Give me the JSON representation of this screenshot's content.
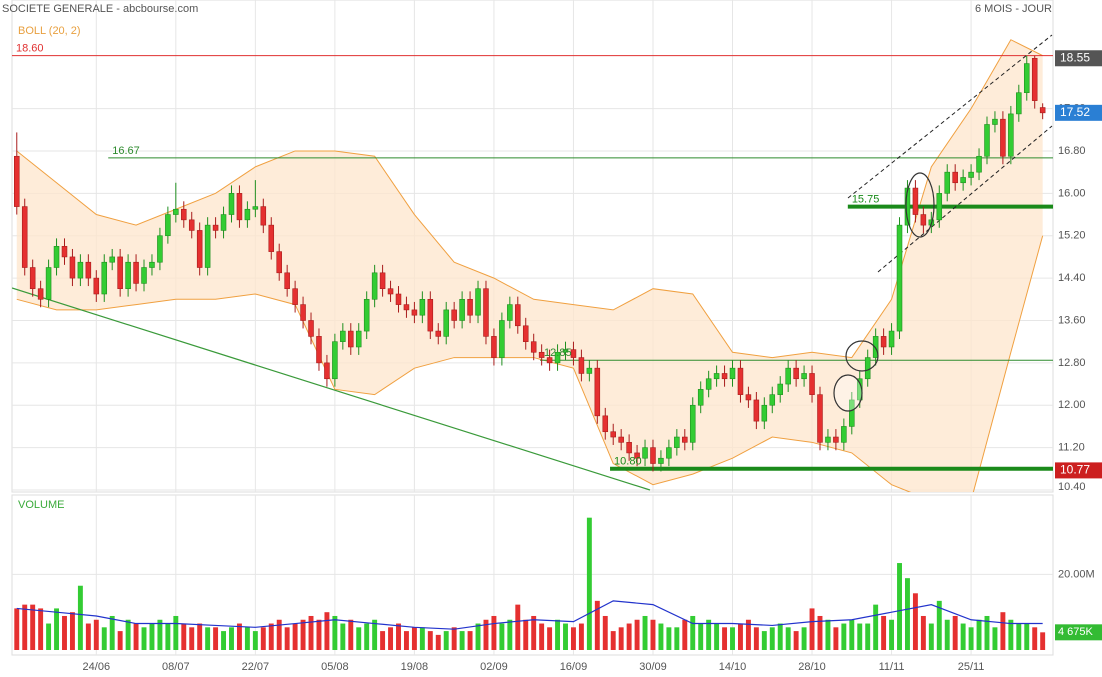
{
  "chart_data": {
    "type": "candlestick",
    "title": "SOCIETE GENERALE - abcbourse.com",
    "subtitle": "6 MOIS - JOUR",
    "xlim": [
      -0.6,
      130.3
    ],
    "ylim": [
      10.4,
      19.65
    ],
    "yticks": [
      {
        "value": 17.6,
        "label": "17.60"
      },
      {
        "value": 16.8,
        "label": "16.80"
      },
      {
        "value": 16,
        "label": "16.00"
      },
      {
        "value": 15.2,
        "label": "15.20"
      },
      {
        "value": 14.4,
        "label": "14.40"
      },
      {
        "value": 13.6,
        "label": "13.60"
      },
      {
        "value": 12.8,
        "label": "12.80"
      },
      {
        "value": 12,
        "label": "12.00"
      },
      {
        "value": 11.2,
        "label": "11.20"
      },
      {
        "value": 10.4,
        "label": "10.40"
      }
    ],
    "xticks": [
      {
        "value": 10,
        "label": "24/06"
      },
      {
        "value": 20,
        "label": "08/07"
      },
      {
        "value": 30,
        "label": "22/07"
      },
      {
        "value": 40,
        "label": "05/08"
      },
      {
        "value": 50,
        "label": "19/08"
      },
      {
        "value": 60,
        "label": "02/09"
      },
      {
        "value": 70,
        "label": "16/09"
      },
      {
        "value": 80,
        "label": "30/09"
      },
      {
        "value": 90,
        "label": "14/10"
      },
      {
        "value": 100,
        "label": "28/10"
      },
      {
        "value": 110,
        "label": "11/11"
      },
      {
        "value": 120,
        "label": "25/11"
      }
    ],
    "grid": true,
    "up_color": "#33cc33",
    "down_color": "#e53030",
    "candles": [
      [
        16.7,
        17.15,
        15.6,
        15.75
      ],
      [
        15.75,
        15.9,
        14.45,
        14.6
      ],
      [
        14.6,
        14.75,
        14.05,
        14.2
      ],
      [
        14.2,
        14.35,
        13.85,
        14.0
      ],
      [
        14.0,
        14.75,
        13.85,
        14.6
      ],
      [
        14.6,
        15.15,
        14.45,
        15.0
      ],
      [
        15.0,
        15.15,
        14.65,
        14.8
      ],
      [
        14.8,
        14.95,
        14.25,
        14.4
      ],
      [
        14.4,
        14.85,
        14.25,
        14.7
      ],
      [
        14.7,
        14.85,
        14.25,
        14.4
      ],
      [
        14.4,
        14.55,
        13.95,
        14.1
      ],
      [
        14.1,
        14.85,
        13.95,
        14.7
      ],
      [
        14.7,
        14.95,
        14.55,
        14.8
      ],
      [
        14.8,
        14.95,
        14.05,
        14.2
      ],
      [
        14.2,
        14.85,
        14.05,
        14.7
      ],
      [
        14.7,
        14.85,
        14.15,
        14.3
      ],
      [
        14.3,
        14.75,
        14.15,
        14.6
      ],
      [
        14.6,
        14.85,
        14.45,
        14.7
      ],
      [
        14.7,
        15.35,
        14.55,
        15.2
      ],
      [
        15.2,
        15.75,
        15.05,
        15.6
      ],
      [
        15.6,
        16.2,
        15.45,
        15.7
      ],
      [
        15.7,
        15.85,
        15.35,
        15.5
      ],
      [
        15.5,
        15.65,
        15.15,
        15.3
      ],
      [
        15.3,
        15.45,
        14.45,
        14.6
      ],
      [
        14.6,
        15.55,
        14.45,
        15.4
      ],
      [
        15.4,
        15.55,
        15.15,
        15.3
      ],
      [
        15.3,
        15.75,
        15.15,
        15.6
      ],
      [
        15.6,
        16.15,
        15.45,
        16.0
      ],
      [
        16.0,
        16.15,
        15.35,
        15.5
      ],
      [
        15.5,
        15.85,
        15.35,
        15.7
      ],
      [
        15.7,
        16.25,
        15.55,
        15.75
      ],
      [
        15.75,
        15.9,
        15.25,
        15.4
      ],
      [
        15.4,
        15.55,
        14.75,
        14.9
      ],
      [
        14.9,
        15.05,
        14.35,
        14.5
      ],
      [
        14.5,
        14.65,
        14.05,
        14.2
      ],
      [
        14.2,
        14.35,
        13.75,
        13.9
      ],
      [
        13.9,
        14.05,
        13.45,
        13.6
      ],
      [
        13.6,
        13.75,
        13.15,
        13.3
      ],
      [
        13.3,
        13.45,
        12.65,
        12.8
      ],
      [
        12.8,
        12.95,
        12.35,
        12.5
      ],
      [
        12.5,
        13.35,
        12.35,
        13.2
      ],
      [
        13.2,
        13.55,
        13.05,
        13.4
      ],
      [
        13.4,
        13.55,
        12.95,
        13.1
      ],
      [
        13.1,
        13.55,
        12.95,
        13.4
      ],
      [
        13.4,
        14.15,
        13.25,
        14.0
      ],
      [
        14.0,
        14.65,
        13.85,
        14.5
      ],
      [
        14.5,
        14.65,
        14.05,
        14.2
      ],
      [
        14.2,
        14.35,
        13.95,
        14.1
      ],
      [
        14.1,
        14.25,
        13.75,
        13.9
      ],
      [
        13.9,
        14.05,
        13.65,
        13.8
      ],
      [
        13.8,
        13.95,
        13.55,
        13.7
      ],
      [
        13.7,
        14.15,
        13.55,
        14.0
      ],
      [
        14.0,
        14.15,
        13.25,
        13.4
      ],
      [
        13.4,
        13.55,
        13.15,
        13.3
      ],
      [
        13.3,
        13.95,
        13.15,
        13.8
      ],
      [
        13.8,
        13.95,
        13.45,
        13.6
      ],
      [
        13.6,
        14.15,
        13.45,
        14.0
      ],
      [
        14.0,
        14.15,
        13.55,
        13.7
      ],
      [
        13.7,
        14.35,
        13.55,
        14.2
      ],
      [
        14.2,
        14.35,
        13.15,
        13.3
      ],
      [
        13.3,
        13.45,
        12.75,
        12.9
      ],
      [
        12.9,
        13.75,
        12.75,
        13.6
      ],
      [
        13.6,
        14.05,
        13.45,
        13.9
      ],
      [
        13.9,
        14.05,
        13.35,
        13.5
      ],
      [
        13.5,
        13.65,
        13.05,
        13.2
      ],
      [
        13.2,
        13.35,
        12.85,
        13.0
      ],
      [
        13.0,
        13.15,
        12.75,
        12.9
      ],
      [
        12.9,
        13.05,
        12.65,
        12.8
      ],
      [
        12.8,
        13.15,
        12.65,
        13.0
      ],
      [
        13.0,
        13.2,
        12.85,
        13.05
      ],
      [
        13.05,
        13.2,
        12.75,
        12.9
      ],
      [
        12.9,
        13.05,
        12.45,
        12.6
      ],
      [
        12.6,
        12.85,
        12.45,
        12.7
      ],
      [
        12.7,
        12.85,
        11.65,
        11.8
      ],
      [
        11.8,
        11.95,
        11.35,
        11.5
      ],
      [
        11.5,
        11.65,
        11.25,
        11.4
      ],
      [
        11.4,
        11.55,
        11.15,
        11.3
      ],
      [
        11.3,
        11.45,
        10.95,
        11.1
      ],
      [
        11.1,
        11.25,
        10.85,
        11.0
      ],
      [
        11.0,
        11.35,
        10.85,
        11.2
      ],
      [
        11.2,
        11.35,
        10.75,
        10.9
      ],
      [
        10.9,
        11.15,
        10.75,
        11.0
      ],
      [
        11.0,
        11.35,
        10.85,
        11.2
      ],
      [
        11.2,
        11.55,
        11.05,
        11.4
      ],
      [
        11.4,
        11.55,
        11.15,
        11.3
      ],
      [
        11.3,
        12.15,
        11.15,
        12.0
      ],
      [
        12.0,
        12.45,
        11.85,
        12.3
      ],
      [
        12.3,
        12.65,
        12.15,
        12.5
      ],
      [
        12.5,
        12.75,
        12.35,
        12.6
      ],
      [
        12.6,
        12.75,
        12.35,
        12.5
      ],
      [
        12.5,
        12.85,
        12.35,
        12.7
      ],
      [
        12.7,
        12.85,
        12.05,
        12.2
      ],
      [
        12.2,
        12.35,
        11.95,
        12.1
      ],
      [
        12.1,
        12.25,
        11.55,
        11.7
      ],
      [
        11.7,
        12.15,
        11.55,
        12.0
      ],
      [
        12.0,
        12.35,
        11.85,
        12.2
      ],
      [
        12.2,
        12.55,
        12.05,
        12.4
      ],
      [
        12.4,
        12.85,
        12.25,
        12.7
      ],
      [
        12.7,
        12.85,
        12.35,
        12.5
      ],
      [
        12.5,
        12.75,
        12.35,
        12.6
      ],
      [
        12.6,
        12.75,
        12.05,
        12.2
      ],
      [
        12.2,
        12.35,
        11.15,
        11.3
      ],
      [
        11.3,
        11.55,
        11.15,
        11.4
      ],
      [
        11.4,
        11.55,
        11.15,
        11.3
      ],
      [
        11.3,
        11.75,
        11.15,
        11.6
      ],
      [
        11.6,
        12.25,
        11.45,
        12.1
      ],
      [
        12.1,
        12.65,
        11.95,
        12.5
      ],
      [
        12.5,
        13.05,
        12.35,
        12.9
      ],
      [
        12.9,
        13.45,
        12.75,
        13.3
      ],
      [
        13.3,
        13.45,
        12.95,
        13.1
      ],
      [
        13.1,
        13.55,
        12.95,
        13.4
      ],
      [
        13.4,
        15.55,
        13.25,
        15.4
      ],
      [
        15.4,
        16.25,
        15.25,
        16.1
      ],
      [
        16.1,
        16.25,
        15.45,
        15.6
      ],
      [
        15.6,
        15.75,
        15.25,
        15.4
      ],
      [
        15.4,
        15.65,
        15.25,
        15.5
      ],
      [
        15.5,
        16.15,
        15.35,
        16.0
      ],
      [
        16.0,
        16.55,
        15.85,
        16.4
      ],
      [
        16.4,
        16.55,
        16.05,
        16.2
      ],
      [
        16.2,
        16.45,
        16.05,
        16.3
      ],
      [
        16.3,
        16.55,
        16.15,
        16.4
      ],
      [
        16.4,
        16.85,
        16.25,
        16.7
      ],
      [
        16.7,
        17.45,
        16.55,
        17.3
      ],
      [
        17.3,
        17.55,
        17.15,
        17.4
      ],
      [
        17.4,
        17.55,
        16.55,
        16.7
      ],
      [
        16.7,
        17.65,
        16.55,
        17.5
      ],
      [
        17.5,
        18.05,
        17.35,
        17.9
      ],
      [
        17.9,
        18.6,
        17.75,
        18.45
      ],
      [
        18.55,
        18.6,
        17.6,
        17.75
      ],
      [
        17.62,
        17.7,
        17.4,
        17.52
      ]
    ],
    "bollinger": {
      "label": "BOLL (20, 2)",
      "color": "#f0a040",
      "x": [
        0,
        5,
        10,
        15,
        20,
        25,
        30,
        35,
        40,
        45,
        50,
        55,
        60,
        65,
        70,
        75,
        80,
        85,
        90,
        95,
        100,
        105,
        110,
        115,
        120,
        125,
        129
      ],
      "upper": [
        16.8,
        16.2,
        15.6,
        15.4,
        15.7,
        16.0,
        16.5,
        16.8,
        16.8,
        16.7,
        15.6,
        14.7,
        14.4,
        14.0,
        13.9,
        13.8,
        14.2,
        14.1,
        13.0,
        12.9,
        13.0,
        12.9,
        14.0,
        16.5,
        17.6,
        18.9,
        18.6
      ],
      "lower": [
        14.0,
        13.8,
        13.8,
        13.9,
        14.0,
        14.0,
        14.1,
        13.9,
        12.3,
        12.2,
        12.7,
        12.9,
        12.9,
        12.9,
        12.7,
        10.9,
        10.5,
        10.7,
        11.0,
        11.4,
        11.3,
        11.1,
        10.5,
        10.2,
        10.2,
        13.0,
        15.2
      ]
    },
    "levels": [
      {
        "value": 18.6,
        "label": "18.60",
        "color": "#e03030",
        "width": 1,
        "x_start": -0.6
      },
      {
        "value": 16.67,
        "color": "#2e8b2e",
        "width": 1,
        "x_start": 11.5
      },
      {
        "value": 15.75,
        "color": "#1a8a1a",
        "width": 4,
        "x_start": 104.5
      },
      {
        "value": 12.85,
        "color": "#2e8b2e",
        "width": 1,
        "x_start": 65.8
      },
      {
        "value": 10.8,
        "label": "10.80",
        "color": "#1a8a1a",
        "width": 4,
        "x_start": 74.6
      }
    ],
    "price_markers": [
      {
        "value": 18.55,
        "color": "#555555"
      },
      {
        "value": 17.52,
        "color": "#2a7fd4"
      },
      {
        "value": 10.77,
        "color": "#cc1f1f"
      }
    ],
    "volume": {
      "label": "VOLUME",
      "ylim": [
        0,
        41
      ],
      "yticks": [
        {
          "value": 20,
          "label": "20.00M"
        }
      ],
      "values": [
        11,
        12,
        12,
        11,
        7,
        11,
        9,
        10,
        17,
        7,
        8,
        6,
        9,
        5,
        8,
        7,
        6,
        7,
        8,
        7,
        9,
        7,
        6,
        7,
        6,
        6,
        5,
        6,
        7,
        6,
        5,
        6,
        7,
        8,
        6,
        7,
        8,
        9,
        8,
        10,
        9,
        7,
        8,
        6,
        7,
        8,
        5,
        6,
        7,
        5,
        6,
        6,
        5,
        4,
        5,
        6,
        5,
        5,
        7,
        8,
        9,
        7,
        8,
        12,
        8,
        9,
        7,
        6,
        8,
        7,
        6,
        7,
        35,
        13,
        9,
        5,
        6,
        7,
        8,
        9,
        8,
        7,
        6,
        6,
        8,
        9,
        7,
        8,
        7,
        6,
        6,
        7,
        8,
        6,
        5,
        6,
        7,
        6,
        5,
        6,
        11,
        9,
        8,
        6,
        7,
        8,
        7,
        7,
        12,
        9,
        8,
        23,
        19,
        15,
        9,
        7,
        13,
        8,
        9,
        7,
        6,
        8,
        9,
        6,
        10,
        8,
        7,
        7,
        6,
        4.675
      ],
      "ma": {
        "color": "#2233cc",
        "x": [
          0,
          5,
          10,
          15,
          20,
          25,
          30,
          35,
          40,
          45,
          50,
          55,
          60,
          65,
          70,
          75,
          80,
          85,
          90,
          95,
          100,
          105,
          110,
          115,
          120,
          125,
          129
        ],
        "values": [
          11,
          10,
          9,
          7,
          7,
          6.5,
          6,
          7,
          8,
          7,
          6,
          5.5,
          7,
          8,
          7.5,
          13,
          12,
          7,
          7,
          6.5,
          7.5,
          8,
          10,
          12,
          8,
          7,
          7
        ]
      },
      "marker": {
        "value": 4.675,
        "label": "4 675K"
      }
    }
  }
}
